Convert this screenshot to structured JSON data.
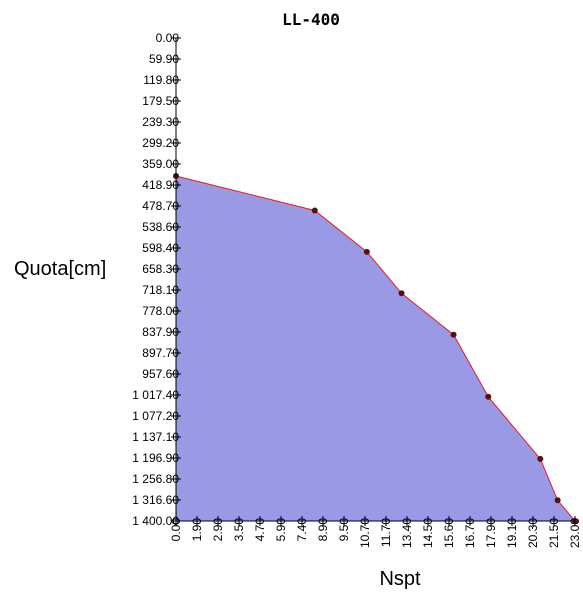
{
  "chart_data": {
    "type": "area",
    "title": "LL-400",
    "xlabel": "Nspt",
    "ylabel": "Quota[cm]",
    "x_ticks": [
      "0.00",
      "1.90",
      "2.90",
      "3.50",
      "4.70",
      "5.90",
      "7.40",
      "8.90",
      "9.50",
      "10.70",
      "11.70",
      "13.40",
      "14.50",
      "15.60",
      "16.70",
      "17.90",
      "19.10",
      "20.30",
      "21.50",
      "23.00"
    ],
    "y_ticks": [
      "0.00",
      "59.90",
      "119.80",
      "179.50",
      "239.30",
      "299.20",
      "359.00",
      "418.90",
      "478.70",
      "538.60",
      "598.40",
      "658.30",
      "718.10",
      "778.00",
      "837.90",
      "897.70",
      "957.60",
      "1 017.40",
      "1 077.20",
      "1 137.10",
      "1 196.90",
      "1 256.80",
      "1 316.60",
      "1 400.00"
    ],
    "xlim": [
      0,
      23
    ],
    "ylim": [
      1400,
      0
    ],
    "series": [
      {
        "x": [
          0,
          8,
          11,
          13,
          16,
          18,
          21,
          22,
          23
        ],
        "y": [
          400,
          500,
          620,
          740,
          860,
          1040,
          1220,
          1340,
          1400
        ]
      }
    ],
    "grid": false,
    "colors": {
      "fill": "#9999e6",
      "line": "#e61e1e",
      "marker": "#5a0f0f",
      "axis": "#000000"
    }
  }
}
